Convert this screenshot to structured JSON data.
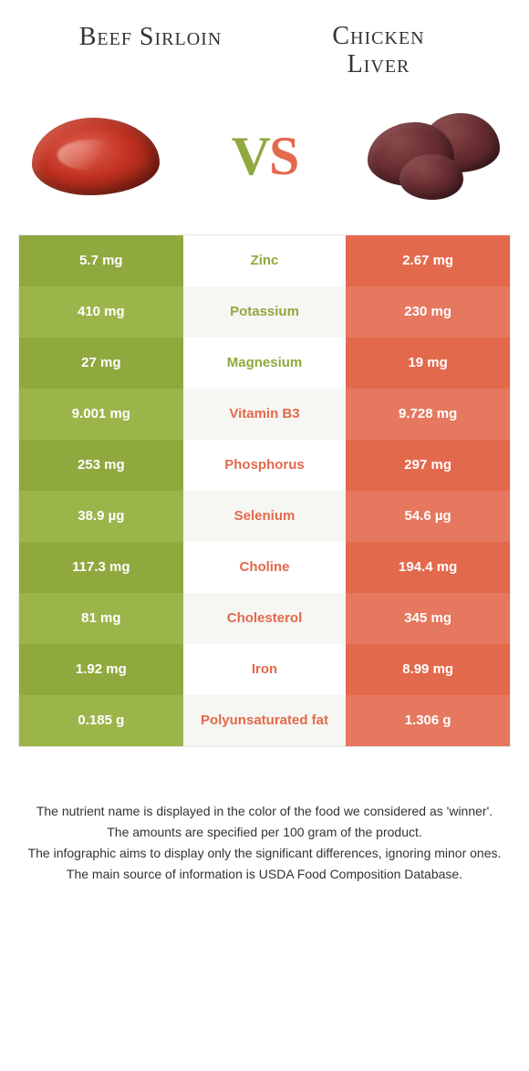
{
  "foods": {
    "left": {
      "name": "Beef Sirloin",
      "color": "#8fa93f",
      "alt_color": "#9bb54a"
    },
    "right": {
      "name": "Chicken Liver",
      "color": "#e3694c",
      "alt_color": "#e5785e"
    }
  },
  "vs_label": {
    "v": "V",
    "s": "S"
  },
  "nutrients": [
    {
      "label": "Zinc",
      "left": "5.7 mg",
      "right": "2.67 mg",
      "winner": "left"
    },
    {
      "label": "Potassium",
      "left": "410 mg",
      "right": "230 mg",
      "winner": "left"
    },
    {
      "label": "Magnesium",
      "left": "27 mg",
      "right": "19 mg",
      "winner": "left"
    },
    {
      "label": "Vitamin B3",
      "left": "9.001 mg",
      "right": "9.728 mg",
      "winner": "right"
    },
    {
      "label": "Phosphorus",
      "left": "253 mg",
      "right": "297 mg",
      "winner": "right"
    },
    {
      "label": "Selenium",
      "left": "38.9 µg",
      "right": "54.6 µg",
      "winner": "right"
    },
    {
      "label": "Choline",
      "left": "117.3 mg",
      "right": "194.4 mg",
      "winner": "right"
    },
    {
      "label": "Cholesterol",
      "left": "81 mg",
      "right": "345 mg",
      "winner": "right"
    },
    {
      "label": "Iron",
      "left": "1.92 mg",
      "right": "8.99 mg",
      "winner": "right"
    },
    {
      "label": "Polyunsaturated fat",
      "left": "0.185 g",
      "right": "1.306 g",
      "winner": "right"
    }
  ],
  "footnotes": [
    "The nutrient name is displayed in the color of the food we considered as 'winner'.",
    "The amounts are specified per 100 gram of the product.",
    "The infographic aims to display only the significant differences, ignoring minor ones.",
    "The main source of information is USDA Food Composition Database."
  ]
}
